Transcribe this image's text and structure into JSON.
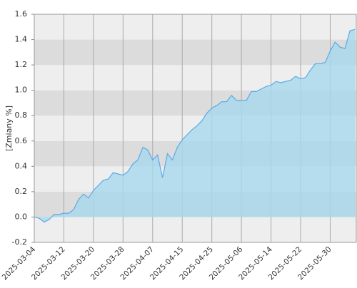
{
  "chart_data": {
    "type": "area",
    "ylabel": "[Zmiany %]",
    "categories": [
      "2025-03-04",
      null,
      null,
      null,
      null,
      null,
      "2025-03-12",
      null,
      null,
      null,
      null,
      null,
      "2025-03-20",
      null,
      null,
      null,
      null,
      null,
      "2025-03-28",
      null,
      null,
      null,
      null,
      null,
      "2025-04-07",
      null,
      null,
      null,
      null,
      null,
      "2025-04-15",
      null,
      null,
      null,
      null,
      null,
      "2025-04-25",
      null,
      null,
      null,
      null,
      null,
      "2025-05-06",
      null,
      null,
      null,
      null,
      null,
      "2025-05-14",
      null,
      null,
      null,
      null,
      null,
      "2025-05-22",
      null,
      null,
      null,
      null,
      null,
      "2025-05-30",
      null,
      null,
      null,
      null,
      null
    ],
    "values": [
      0.0,
      -0.01,
      -0.04,
      -0.02,
      0.02,
      0.02,
      0.03,
      0.03,
      0.06,
      0.14,
      0.18,
      0.15,
      0.21,
      0.25,
      0.29,
      0.3,
      0.35,
      0.34,
      0.33,
      0.36,
      0.42,
      0.45,
      0.55,
      0.53,
      0.45,
      0.49,
      0.31,
      0.5,
      0.45,
      0.55,
      0.61,
      0.65,
      0.69,
      0.72,
      0.76,
      0.82,
      0.86,
      0.88,
      0.91,
      0.91,
      0.96,
      0.92,
      0.92,
      0.92,
      0.99,
      0.99,
      1.01,
      1.03,
      1.04,
      1.07,
      1.06,
      1.07,
      1.08,
      1.11,
      1.09,
      1.1,
      1.16,
      1.21,
      1.21,
      1.22,
      1.31,
      1.38,
      1.34,
      1.33,
      1.47,
      1.48
    ],
    "color": "#5aaae8",
    "fill": "#a6d8ec",
    "ylim": [
      -0.2,
      1.6
    ],
    "yticks": [
      -0.2,
      {
        "value": 0,
        "label": "0.0"
      },
      0.2,
      0.4,
      0.6,
      0.8,
      {
        "value": 1,
        "label": "1.0"
      },
      1.2,
      1.4,
      1.6
    ],
    "grid": true
  }
}
